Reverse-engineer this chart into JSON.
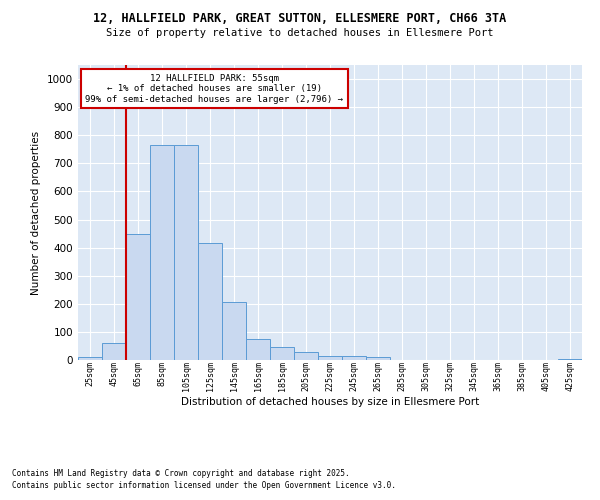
{
  "title1": "12, HALLFIELD PARK, GREAT SUTTON, ELLESMERE PORT, CH66 3TA",
  "title2": "Size of property relative to detached houses in Ellesmere Port",
  "xlabel": "Distribution of detached houses by size in Ellesmere Port",
  "ylabel": "Number of detached properties",
  "categories": [
    "25sqm",
    "45sqm",
    "65sqm",
    "85sqm",
    "105sqm",
    "125sqm",
    "145sqm",
    "165sqm",
    "185sqm",
    "205sqm",
    "225sqm",
    "245sqm",
    "265sqm",
    "285sqm",
    "305sqm",
    "325sqm",
    "345sqm",
    "365sqm",
    "385sqm",
    "405sqm",
    "425sqm"
  ],
  "values": [
    10,
    60,
    447,
    765,
    765,
    415,
    205,
    75,
    45,
    28,
    15,
    15,
    12,
    0,
    0,
    0,
    0,
    0,
    0,
    0,
    5
  ],
  "bar_color": "#c9d9f0",
  "bar_edge_color": "#5b9bd5",
  "vline_x": 1.5,
  "vline_color": "#cc0000",
  "annotation_title": "12 HALLFIELD PARK: 55sqm",
  "annotation_line1": "← 1% of detached houses are smaller (19)",
  "annotation_line2": "99% of semi-detached houses are larger (2,796) →",
  "annotation_box_color": "#cc0000",
  "ylim": [
    0,
    1050
  ],
  "yticks": [
    0,
    100,
    200,
    300,
    400,
    500,
    600,
    700,
    800,
    900,
    1000
  ],
  "bg_color": "#dde8f5",
  "footer1": "Contains HM Land Registry data © Crown copyright and database right 2025.",
  "footer2": "Contains public sector information licensed under the Open Government Licence v3.0."
}
